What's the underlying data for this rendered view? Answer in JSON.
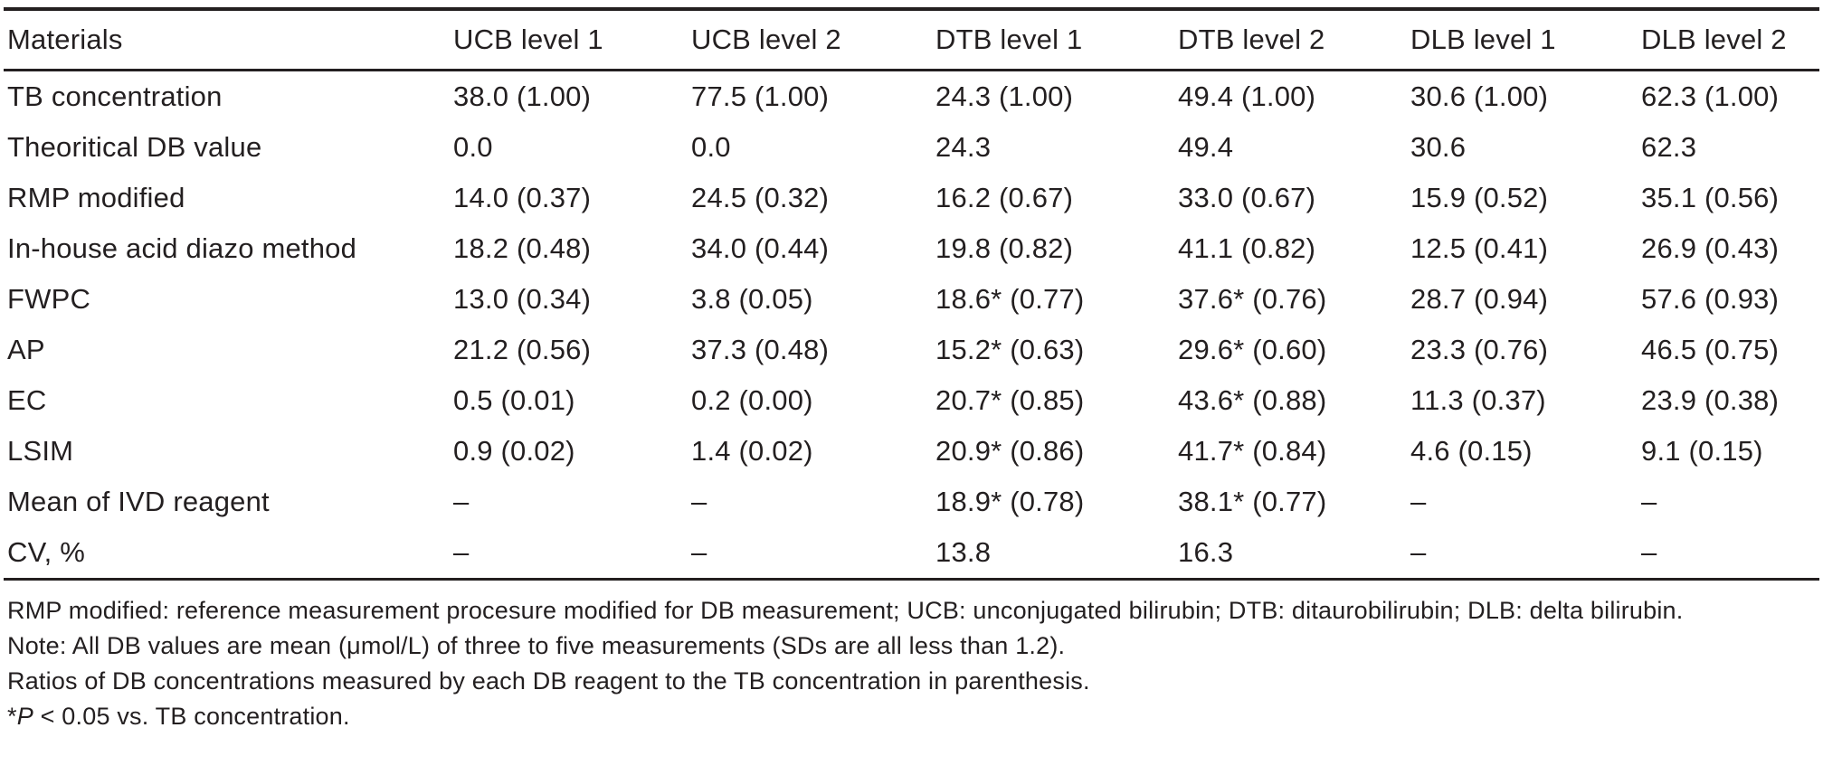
{
  "table": {
    "columns": [
      "Materials",
      "UCB level 1",
      "UCB level 2",
      "DTB level 1",
      "DTB level 2",
      "DLB level 1",
      "DLB level 2"
    ],
    "rows": [
      {
        "label": "TB concentration",
        "values": [
          "38.0 (1.00)",
          "77.5 (1.00)",
          "24.3 (1.00)",
          "49.4 (1.00)",
          "30.6 (1.00)",
          "62.3 (1.00)"
        ]
      },
      {
        "label": "Theoritical DB value",
        "values": [
          "0.0",
          "0.0",
          "24.3",
          "49.4",
          "30.6",
          "62.3"
        ]
      },
      {
        "label": "RMP modified",
        "values": [
          "14.0 (0.37)",
          "24.5 (0.32)",
          "16.2 (0.67)",
          "33.0 (0.67)",
          "15.9 (0.52)",
          "35.1 (0.56)"
        ]
      },
      {
        "label": "In-house acid diazo method",
        "values": [
          "18.2 (0.48)",
          "34.0 (0.44)",
          "19.8 (0.82)",
          "41.1 (0.82)",
          "12.5 (0.41)",
          "26.9 (0.43)"
        ]
      },
      {
        "label": "FWPC",
        "values": [
          "13.0 (0.34)",
          "3.8 (0.05)",
          "18.6* (0.77)",
          "37.6* (0.76)",
          "28.7 (0.94)",
          "57.6 (0.93)"
        ]
      },
      {
        "label": "AP",
        "values": [
          "21.2 (0.56)",
          "37.3 (0.48)",
          "15.2* (0.63)",
          "29.6* (0.60)",
          "23.3 (0.76)",
          "46.5 (0.75)"
        ]
      },
      {
        "label": "EC",
        "values": [
          "0.5 (0.01)",
          "0.2 (0.00)",
          "20.7* (0.85)",
          "43.6* (0.88)",
          "11.3 (0.37)",
          "23.9 (0.38)"
        ]
      },
      {
        "label": "LSIM",
        "values": [
          "0.9 (0.02)",
          "1.4 (0.02)",
          "20.9* (0.86)",
          "41.7* (0.84)",
          "4.6 (0.15)",
          "9.1 (0.15)"
        ]
      },
      {
        "label": "Mean of IVD reagent",
        "values": [
          "–",
          "–",
          "18.9* (0.78)",
          "38.1* (0.77)",
          "–",
          "–"
        ]
      },
      {
        "label": "CV, %",
        "values": [
          "–",
          "–",
          "13.8",
          "16.3",
          "–",
          "–"
        ]
      }
    ]
  },
  "footnotes": {
    "abbreviations": "RMP modified: reference measurement procesure modified for DB measurement; UCB: unconjugated bilirubin; DTB: ditaurobilirubin; DLB: delta bilirubin.",
    "note": "Note: All DB values are mean (μmol/L) of three to five measurements (SDs are all less than 1.2).",
    "ratios": "Ratios of DB concentrations measured by each DB reagent to the TB concentration in parenthesis.",
    "significance_star": "*",
    "significance_p": "P",
    "significance_rest": " < 0.05 vs. TB concentration."
  },
  "colors": {
    "text": "#231f20",
    "background": "#ffffff",
    "rule": "#231f20"
  }
}
